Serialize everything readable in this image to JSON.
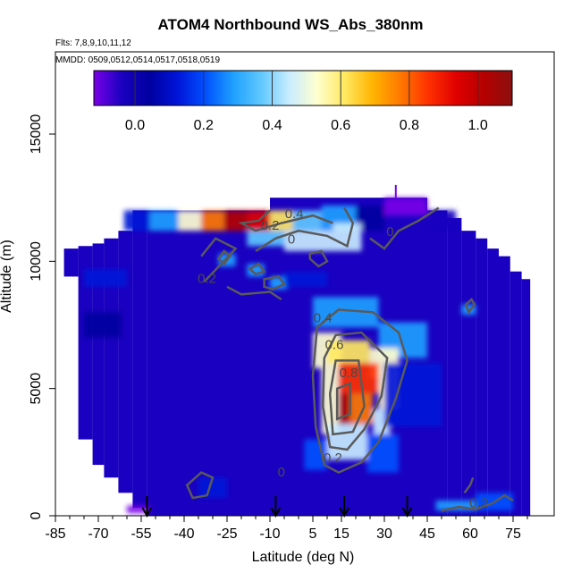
{
  "title": "ATOM4 Northbound WS_Abs_380nm",
  "flights_note": "Flts: 7,8,9,10,11,12",
  "dates_note": "MMDD: 0509,0512,0514,0517,0518,0519",
  "chart_data": {
    "type": "heatmap",
    "title": "ATOM4 Northbound WS_Abs_380nm",
    "xlabel": "Latitude (deg N)",
    "ylabel": "Altitude (m)",
    "xlim": [
      -85,
      85
    ],
    "ylim": [
      0,
      17500
    ],
    "x_ticks": [
      -85,
      -70,
      -55,
      -40,
      -25,
      -10,
      5,
      15,
      30,
      45,
      60,
      75
    ],
    "x_tick_labels": [
      "-85",
      "-70",
      "-55",
      "-40",
      "-25",
      "-10",
      "5",
      "15",
      "30",
      "45",
      "60",
      "75"
    ],
    "y_ticks": [
      0,
      5000,
      10000,
      15000
    ],
    "y_tick_labels": [
      "0",
      "5000",
      "10000",
      "15000"
    ],
    "colorbar": {
      "range": [
        -0.12,
        1.1
      ],
      "ticks": [
        0.0,
        0.2,
        0.4,
        0.6,
        0.8,
        1.0
      ],
      "tick_labels": [
        "0.0",
        "0.2",
        "0.4",
        "0.6",
        "0.8",
        "1.0"
      ],
      "colors": [
        "#7a00e8",
        "#1a00c0",
        "#0000a0",
        "#0014d8",
        "#0050ff",
        "#1ea0ff",
        "#60c8ff",
        "#c8ecff",
        "#ffffd0",
        "#ffe860",
        "#ffb400",
        "#ff7800",
        "#ff3000",
        "#e00000",
        "#b40000",
        "#8c1010"
      ]
    },
    "contour_labels": [
      {
        "text": "0.4",
        "x": -1.5,
        "y": 11700
      },
      {
        "text": "0.2",
        "x": -10,
        "y": 11250
      },
      {
        "text": "0",
        "x": -2.5,
        "y": 10700
      },
      {
        "text": "0",
        "x": 32,
        "y": 11000
      },
      {
        "text": "0.2",
        "x": -32,
        "y": 9150
      },
      {
        "text": "0.4",
        "x": 8.5,
        "y": 7600
      },
      {
        "text": "0.6",
        "x": 12.5,
        "y": 6550
      },
      {
        "text": "0.8",
        "x": 17.5,
        "y": 5450
      },
      {
        "text": "0.2",
        "x": 12,
        "y": 2100
      },
      {
        "text": "0",
        "x": -6,
        "y": 1550
      },
      {
        "text": "0.2",
        "x": 63,
        "y": 330
      }
    ],
    "flight_markers_lat": [
      -53,
      -8,
      16,
      38
    ],
    "cells": [
      {
        "lat": [
          -61,
          -52
        ],
        "alt": [
          11200,
          12000
        ],
        "v": 0.15
      },
      {
        "lat": [
          -52,
          -42
        ],
        "alt": [
          11200,
          12000
        ],
        "v": 0.3
      },
      {
        "lat": [
          -42,
          -34
        ],
        "alt": [
          11200,
          12000
        ],
        "v": 0.55
      },
      {
        "lat": [
          -34,
          -26
        ],
        "alt": [
          11200,
          12000
        ],
        "v": 0.78
      },
      {
        "lat": [
          -26,
          -18
        ],
        "alt": [
          11200,
          12000
        ],
        "v": 0.95
      },
      {
        "lat": [
          -18,
          -10
        ],
        "alt": [
          11200,
          12000
        ],
        "v": 0.9
      },
      {
        "lat": [
          -10,
          -2
        ],
        "alt": [
          11200,
          12000
        ],
        "v": 0.62
      },
      {
        "lat": [
          -2,
          8
        ],
        "alt": [
          11200,
          12000
        ],
        "v": 0.38
      },
      {
        "lat": [
          8,
          20
        ],
        "alt": [
          11200,
          12200
        ],
        "v": 0.32
      },
      {
        "lat": [
          20,
          30
        ],
        "alt": [
          11200,
          12200
        ],
        "v": 0.1
      },
      {
        "lat": [
          30,
          45
        ],
        "alt": [
          11800,
          12500
        ],
        "v": -0.1
      },
      {
        "lat": [
          45,
          55
        ],
        "alt": [
          11300,
          12000
        ],
        "v": 0.02
      },
      {
        "lat": [
          -18,
          -5
        ],
        "alt": [
          10600,
          11200
        ],
        "v": 0.35
      },
      {
        "lat": [
          -5,
          12
        ],
        "alt": [
          10400,
          11200
        ],
        "v": 0.45
      },
      {
        "lat": [
          12,
          22
        ],
        "alt": [
          10400,
          11500
        ],
        "v": 0.42
      },
      {
        "lat": [
          -28,
          -22
        ],
        "alt": [
          9800,
          10300
        ],
        "v": 0.32
      },
      {
        "lat": [
          -18,
          -12
        ],
        "alt": [
          9400,
          9900
        ],
        "v": 0.3
      },
      {
        "lat": [
          -10,
          -4
        ],
        "alt": [
          8900,
          9400
        ],
        "v": 0.32
      },
      {
        "lat": [
          -75,
          -60
        ],
        "alt": [
          9000,
          9700
        ],
        "v": 0.12
      },
      {
        "lat": [
          -5,
          10
        ],
        "alt": [
          9000,
          9600
        ],
        "v": 0.14
      },
      {
        "lat": [
          5,
          28
        ],
        "alt": [
          7400,
          8600
        ],
        "v": 0.28
      },
      {
        "lat": [
          28,
          45
        ],
        "alt": [
          6200,
          7600
        ],
        "v": 0.3
      },
      {
        "lat": [
          5,
          15
        ],
        "alt": [
          5800,
          7200
        ],
        "v": 0.5
      },
      {
        "lat": [
          10,
          25
        ],
        "alt": [
          6000,
          6900
        ],
        "v": 0.62
      },
      {
        "lat": [
          25,
          35
        ],
        "alt": [
          5400,
          6600
        ],
        "v": 0.5
      },
      {
        "lat": [
          8,
          14
        ],
        "alt": [
          3200,
          5800
        ],
        "v": 0.55
      },
      {
        "lat": [
          14,
          28
        ],
        "alt": [
          4800,
          6000
        ],
        "v": 0.82
      },
      {
        "lat": [
          28,
          35
        ],
        "alt": [
          4200,
          5400
        ],
        "v": 0.55
      },
      {
        "lat": [
          14,
          18
        ],
        "alt": [
          3600,
          4800
        ],
        "v": 0.95
      },
      {
        "lat": [
          18,
          26
        ],
        "alt": [
          3600,
          4800
        ],
        "v": 0.72
      },
      {
        "lat": [
          26,
          32
        ],
        "alt": [
          3200,
          4200
        ],
        "v": 0.45
      },
      {
        "lat": [
          10,
          24
        ],
        "alt": [
          2200,
          3600
        ],
        "v": 0.42
      },
      {
        "lat": [
          2,
          10
        ],
        "alt": [
          1800,
          3000
        ],
        "v": 0.2
      },
      {
        "lat": [
          24,
          35
        ],
        "alt": [
          1700,
          3200
        ],
        "v": 0.2
      },
      {
        "lat": [
          30,
          50
        ],
        "alt": [
          3500,
          6000
        ],
        "v": 0.12
      },
      {
        "lat": [
          48,
          62
        ],
        "alt": [
          200,
          600
        ],
        "v": 0.28
      },
      {
        "lat": [
          62,
          75
        ],
        "alt": [
          200,
          900
        ],
        "v": 0.22
      },
      {
        "lat": [
          57,
          62
        ],
        "alt": [
          7900,
          8300
        ],
        "v": 0.3
      },
      {
        "lat": [
          -35,
          -25
        ],
        "alt": [
          700,
          1500
        ],
        "v": 0.15
      },
      {
        "lat": [
          -75,
          -62
        ],
        "alt": [
          7000,
          8000
        ],
        "v": 0.1
      },
      {
        "lat": [
          -60,
          -52
        ],
        "alt": [
          100,
          400
        ],
        "v": -0.05
      }
    ],
    "envelope": [
      {
        "lat": [
          -82,
          -77
        ],
        "alt": [
          9400,
          10500
        ]
      },
      {
        "lat": [
          -77,
          -72
        ],
        "alt": [
          3000,
          10600
        ]
      },
      {
        "lat": [
          -72,
          -68
        ],
        "alt": [
          2000,
          10700
        ]
      },
      {
        "lat": [
          -68,
          -63
        ],
        "alt": [
          1500,
          10900
        ]
      },
      {
        "lat": [
          -63,
          -58
        ],
        "alt": [
          900,
          11200
        ]
      },
      {
        "lat": [
          -58,
          -53
        ],
        "alt": [
          300,
          12000
        ]
      },
      {
        "lat": [
          -53,
          -45
        ],
        "alt": [
          0,
          12000
        ]
      },
      {
        "lat": [
          -45,
          -10
        ],
        "alt": [
          0,
          12000
        ]
      },
      {
        "lat": [
          -10,
          5
        ],
        "alt": [
          0,
          12500
        ]
      },
      {
        "lat": [
          5,
          20
        ],
        "alt": [
          0,
          12500
        ]
      },
      {
        "lat": [
          20,
          45
        ],
        "alt": [
          0,
          12500
        ]
      },
      {
        "lat": [
          45,
          52
        ],
        "alt": [
          0,
          12000
        ]
      },
      {
        "lat": [
          52,
          57
        ],
        "alt": [
          0,
          11700
        ]
      },
      {
        "lat": [
          57,
          62
        ],
        "alt": [
          0,
          11200
        ]
      },
      {
        "lat": [
          62,
          66
        ],
        "alt": [
          0,
          10900
        ]
      },
      {
        "lat": [
          66,
          70
        ],
        "alt": [
          0,
          10500
        ]
      },
      {
        "lat": [
          70,
          74
        ],
        "alt": [
          0,
          10200
        ]
      },
      {
        "lat": [
          74,
          78
        ],
        "alt": [
          0,
          9600
        ]
      },
      {
        "lat": [
          78,
          81
        ],
        "alt": [
          0,
          9300
        ]
      }
    ]
  }
}
